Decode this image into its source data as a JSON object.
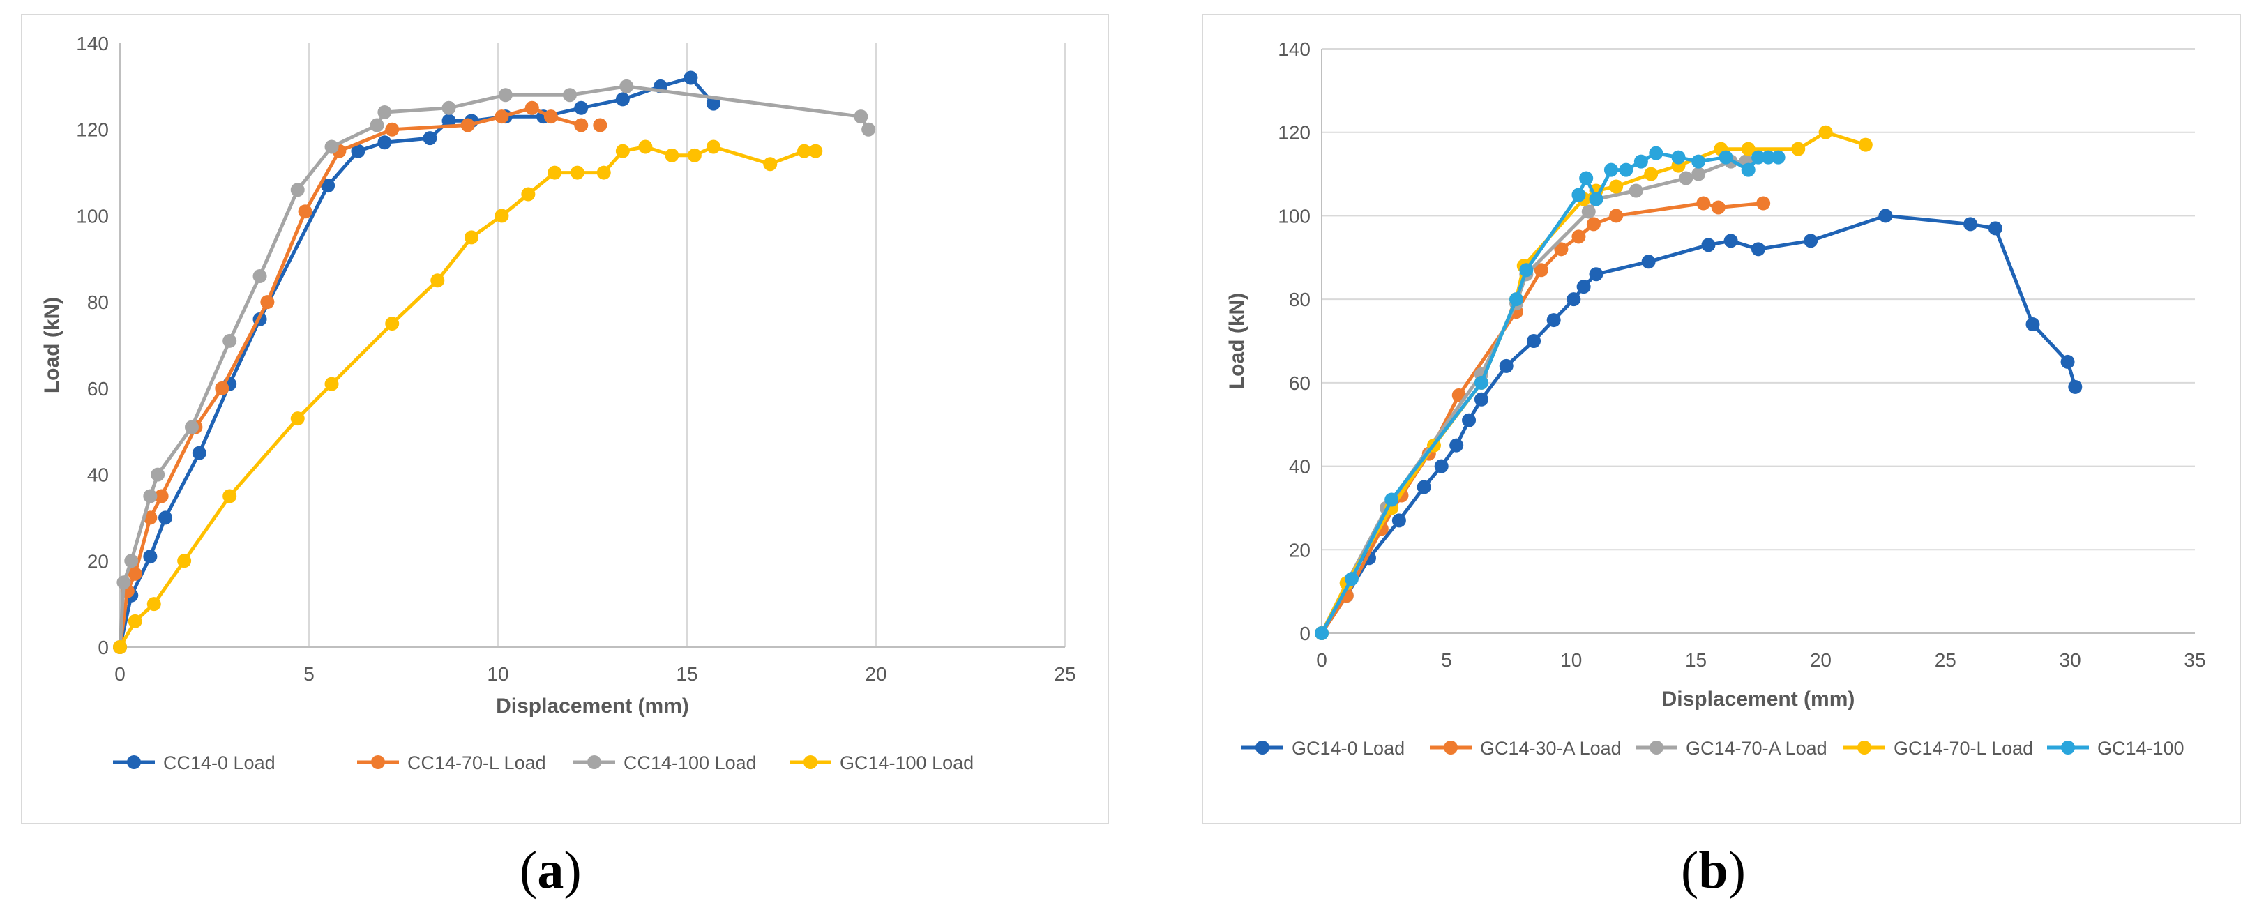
{
  "chart_data": [
    {
      "type": "line",
      "panel_label": "a",
      "title": "",
      "xlabel": "Displacement (mm)",
      "ylabel": "Load (kN)",
      "xlim": [
        0,
        25
      ],
      "ylim": [
        0,
        140
      ],
      "xticks": [
        0,
        5,
        10,
        15,
        20,
        25
      ],
      "yticks": [
        0,
        20,
        40,
        60,
        80,
        100,
        120,
        140
      ],
      "grid": "vertical",
      "legend_position": "bottom",
      "series": [
        {
          "name": "CC14-0 Load",
          "color": "#1f63b5",
          "x": [
            0,
            0.3,
            0.8,
            1.2,
            2.1,
            2.9,
            3.7,
            5.5,
            6.3,
            7,
            8.2,
            8.7,
            9.3,
            10.2,
            11.2,
            12.2,
            13.3,
            14.3,
            15.1,
            15.7
          ],
          "y": [
            0,
            12,
            21,
            30,
            45,
            61,
            76,
            107,
            115,
            117,
            118,
            122,
            122,
            123,
            123,
            125,
            127,
            130,
            132,
            126
          ]
        },
        {
          "name": "CC14-70-L Load",
          "color": "#ef7b2e",
          "x": [
            0,
            0.2,
            0.4,
            0.8,
            1.1,
            2,
            2.7,
            3.9,
            4.9,
            5.8,
            7.2,
            9.2,
            10.1,
            10.9,
            11.4,
            12.2,
            12.7
          ],
          "y": [
            0,
            13,
            17,
            30,
            35,
            51,
            60,
            80,
            101,
            115,
            120,
            121,
            123,
            125,
            123,
            121,
            121
          ],
          "last_drawn_index": 15
        },
        {
          "name": "CC14-100 Load",
          "color": "#a5a5a5",
          "x": [
            0,
            0.1,
            0.3,
            0.8,
            1,
            1.9,
            2.9,
            3.7,
            4.7,
            5.6,
            6.8,
            7,
            8.7,
            10.2,
            11.9,
            13.4,
            19.6,
            19.8
          ],
          "y": [
            0,
            15,
            20,
            35,
            40,
            51,
            71,
            86,
            106,
            116,
            121,
            124,
            125,
            128,
            128,
            130,
            123,
            120
          ]
        },
        {
          "name": "GC14-100 Load",
          "color": "#ffc000",
          "x": [
            0,
            0.4,
            0.9,
            1.7,
            2.9,
            4.7,
            5.6,
            7.2,
            8.4,
            9.3,
            10.1,
            10.8,
            11.5,
            12.1,
            12.8,
            13.3,
            13.9,
            14.6,
            15.2,
            15.7,
            17.2,
            18.1,
            18.4
          ],
          "y": [
            0,
            6,
            10,
            20,
            35,
            53,
            61,
            75,
            85,
            95,
            100,
            105,
            110,
            110,
            110,
            115,
            116,
            114,
            114,
            116,
            112,
            115,
            115
          ]
        }
      ]
    },
    {
      "type": "line",
      "panel_label": "b",
      "title": "",
      "xlabel": "Displacement (mm)",
      "ylabel": "Load (kN)",
      "xlim": [
        0,
        35
      ],
      "ylim": [
        0,
        140
      ],
      "xticks": [
        0,
        5,
        10,
        15,
        20,
        25,
        30,
        35
      ],
      "yticks": [
        0,
        20,
        40,
        60,
        80,
        100,
        120,
        140
      ],
      "grid": "horizontal",
      "legend_position": "bottom",
      "series": [
        {
          "name": "GC14-0 Load",
          "color": "#1f63b5",
          "x": [
            0,
            1,
            1.9,
            3.1,
            4.1,
            4.8,
            5.4,
            5.9,
            6.4,
            7.4,
            8.5,
            9.3,
            10.1,
            10.5,
            11,
            13.1,
            15.5,
            16.4,
            17.5,
            19.6,
            22.6,
            26,
            27,
            28.5,
            29.9,
            30.2
          ],
          "y": [
            0,
            9,
            18,
            27,
            35,
            40,
            45,
            51,
            56,
            64,
            70,
            75,
            80,
            83,
            86,
            89,
            93,
            94,
            92,
            94,
            100,
            98,
            97,
            74,
            65,
            59
          ]
        },
        {
          "name": "GC14-30-A Load",
          "color": "#ef7b2e",
          "x": [
            0,
            1,
            2.4,
            3.2,
            4.3,
            5.5,
            7.8,
            8.8,
            9.6,
            10.3,
            10.9,
            11.8,
            15.3,
            15.9,
            17.7
          ],
          "y": [
            0,
            9,
            25,
            33,
            43,
            57,
            77,
            87,
            92,
            95,
            98,
            100,
            103,
            102,
            103
          ]
        },
        {
          "name": "GC14-70-A Load",
          "color": "#a5a5a5",
          "x": [
            0,
            1,
            2.6,
            6.4,
            7.8,
            8.2,
            10.7,
            11,
            12.6,
            14.6,
            15.1,
            16.4,
            17
          ],
          "y": [
            0,
            12,
            30,
            62,
            79,
            86,
            101,
            104,
            106,
            109,
            110,
            113,
            113
          ]
        },
        {
          "name": "GC14-70-L Load",
          "color": "#ffc000",
          "x": [
            0,
            1,
            2.8,
            4.5,
            6.4,
            7.8,
            8.1,
            10.5,
            11,
            11.8,
            13.2,
            14.3,
            16,
            17.1,
            19.1,
            20.2,
            21.8
          ],
          "y": [
            0,
            12,
            30,
            45,
            60,
            80,
            88,
            104,
            106,
            107,
            110,
            112,
            116,
            116,
            116,
            120,
            117
          ]
        },
        {
          "name": "GC14-100",
          "color": "#2aa5dc",
          "x": [
            0,
            1.2,
            2.8,
            6.4,
            7.8,
            8.2,
            10.3,
            10.6,
            11,
            11.6,
            12.2,
            12.8,
            13.4,
            14.3,
            15.1,
            16.2,
            17.1,
            17.5,
            17.9,
            18.3
          ],
          "y": [
            0,
            13,
            32,
            60,
            80,
            87,
            105,
            109,
            104,
            111,
            111,
            113,
            115,
            114,
            113,
            114,
            111,
            114,
            114,
            114
          ]
        }
      ]
    }
  ],
  "captions": {
    "a": {
      "open": "(",
      "letter": "a",
      "close": ")"
    },
    "b": {
      "open": "(",
      "letter": "b",
      "close": ")"
    }
  }
}
